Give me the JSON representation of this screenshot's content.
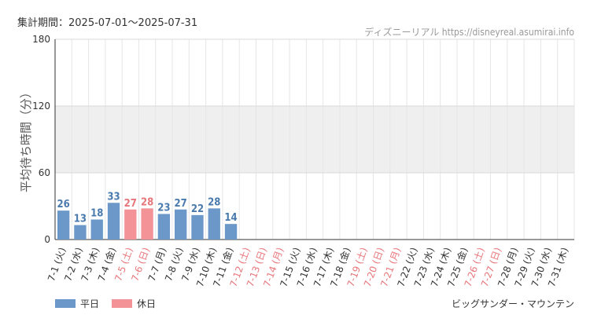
{
  "header": {
    "period": "集計期間：2025-07-01～2025-07-31",
    "source": "ディズニーリアル https://disneyreal.asumirai.info"
  },
  "footer": {
    "attraction": "ビッグサンダー・マウンテン"
  },
  "colors": {
    "weekday": "#6b98c8",
    "holiday": "#f39397",
    "weekday_label": "#4a7aad",
    "holiday_label": "#e7767b",
    "band": "#efefef"
  },
  "chart_data": {
    "type": "bar",
    "ylabel": "平均待ち時間（分）",
    "ylim": [
      0,
      180
    ],
    "yticks": [
      0,
      60,
      120,
      180
    ],
    "shaded_band": [
      60,
      120
    ],
    "grid": true,
    "legend_position": "bottom-left",
    "series": [
      {
        "name": "平日",
        "type": "weekday"
      },
      {
        "name": "休日",
        "type": "holiday"
      }
    ],
    "categories": [
      "7-1 (火)",
      "7-2 (水)",
      "7-3 (木)",
      "7-4 (金)",
      "7-5 (土)",
      "7-6 (日)",
      "7-7 (月)",
      "7-8 (火)",
      "7-9 (水)",
      "7-10 (木)",
      "7-11 (金)",
      "7-12 (土)",
      "7-13 (日)",
      "7-14 (月)",
      "7-15 (火)",
      "7-16 (水)",
      "7-17 (木)",
      "7-18 (金)",
      "7-19 (土)",
      "7-20 (日)",
      "7-21 (月)",
      "7-22 (火)",
      "7-23 (水)",
      "7-24 (木)",
      "7-25 (金)",
      "7-26 (土)",
      "7-27 (日)",
      "7-28 (月)",
      "7-29 (火)",
      "7-30 (水)",
      "7-31 (木)"
    ],
    "holiday": [
      false,
      false,
      false,
      false,
      true,
      true,
      false,
      false,
      false,
      false,
      false,
      true,
      true,
      true,
      false,
      false,
      false,
      false,
      true,
      true,
      true,
      false,
      false,
      false,
      false,
      true,
      true,
      false,
      false,
      false,
      false
    ],
    "values": [
      26,
      13,
      18,
      33,
      27,
      28,
      23,
      27,
      22,
      28,
      14,
      null,
      null,
      null,
      null,
      null,
      null,
      null,
      null,
      null,
      null,
      null,
      null,
      null,
      null,
      null,
      null,
      null,
      null,
      null,
      null
    ]
  }
}
